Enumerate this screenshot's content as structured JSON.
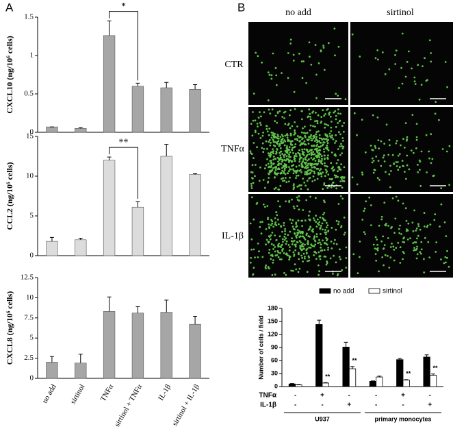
{
  "panel_labels": [
    "A",
    "B"
  ],
  "micrographs": {
    "columns": [
      "no add",
      "sirtinol"
    ],
    "rows": [
      "CTR",
      "TNFα",
      "IL-1β"
    ]
  },
  "chart_data": [
    {
      "type": "bar",
      "y_label": "CXCL10 (ng/10⁶ cells)",
      "color": "#a6a6a6",
      "categories": [
        null,
        null,
        null,
        null,
        null,
        null
      ],
      "values": [
        0.07,
        0.05,
        1.26,
        0.6,
        0.58,
        0.56
      ],
      "errors": [
        0,
        0.01,
        0.19,
        0.04,
        0.07,
        0.06
      ],
      "significance": [
        null,
        null,
        null,
        "*",
        null,
        null
      ],
      "ylim": [
        0,
        1.5
      ],
      "yticks": [
        0,
        0.5,
        1,
        1.5
      ]
    },
    {
      "type": "bar",
      "y_label": "CCL2 (ng/10⁶ cells)",
      "color": "#dcdcdc",
      "categories": [
        null,
        null,
        null,
        null,
        null,
        null
      ],
      "values": [
        1.8,
        2.0,
        12.0,
        6.1,
        12.5,
        10.2
      ],
      "errors": [
        0.5,
        0.2,
        0.4,
        0.7,
        1.5,
        0.1
      ],
      "significance": [
        null,
        null,
        null,
        "**",
        null,
        null
      ],
      "ylim": [
        0,
        15
      ],
      "yticks": [
        0,
        5,
        10,
        15
      ]
    },
    {
      "type": "bar",
      "y_label": "CXCL8 (ng/10⁶ cells)",
      "color": "#a6a6a6",
      "categories": [
        "no add",
        "sirtinol",
        "TNFα",
        "sirtinol + TNFα",
        "IL-1β",
        "sirtinol + IL-1β"
      ],
      "values": [
        2.0,
        1.9,
        8.3,
        8.1,
        8.2,
        6.7
      ],
      "errors": [
        0.7,
        1.1,
        1.8,
        0.8,
        1.5,
        1.0
      ],
      "ylim": [
        0,
        12.5
      ],
      "yticks": [
        0,
        2.5,
        5,
        7.5,
        10,
        12.5
      ]
    },
    {
      "type": "bar",
      "y_label": "Number of cells / field",
      "categories": [
        null,
        null,
        null,
        null,
        null,
        null
      ],
      "series": [
        {
          "name": "no add",
          "color": "#000000",
          "values": [
            6,
            143,
            91,
            12,
            62,
            68
          ],
          "errors": [
            1,
            10,
            11,
            1,
            3,
            5
          ]
        },
        {
          "name": "sirtinol",
          "color": "#ffffff",
          "values": [
            4,
            8,
            41,
            22,
            15,
            26
          ],
          "errors": [
            1,
            1,
            5,
            2,
            1,
            3
          ],
          "markers": [
            null,
            "**",
            "**",
            null,
            "**",
            "**"
          ]
        }
      ],
      "factors": [
        {
          "name": "TNFα",
          "signs": [
            "-",
            "+",
            "-",
            "-",
            "+",
            "-"
          ]
        },
        {
          "name": "IL-1β",
          "signs": [
            "-",
            "-",
            "+",
            "-",
            "-",
            "+"
          ]
        }
      ],
      "group_labels": [
        "U937",
        "primary monocytes"
      ],
      "ylim": [
        0,
        180
      ],
      "yticks": [
        0,
        30,
        60,
        90,
        120,
        150,
        180
      ]
    }
  ]
}
